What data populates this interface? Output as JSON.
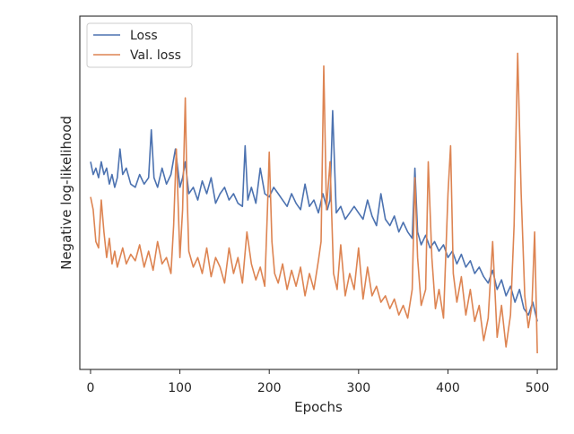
{
  "chart_data": {
    "type": "line",
    "xlabel": "Epochs",
    "ylabel": "Negative log-likelihood",
    "xlim": [
      -12,
      522
    ],
    "ylim": [
      0,
      1
    ],
    "y_tick_labels_shown": false,
    "x_ticks": [
      0,
      100,
      200,
      300,
      400,
      500
    ],
    "x_tick_labels": [
      "0",
      "100",
      "200",
      "300",
      "400",
      "500"
    ],
    "grid": false,
    "legend_position": "top-left",
    "colors": {
      "Loss": "#4c72b0",
      "Val. loss": "#dd8452"
    },
    "series": [
      {
        "name": "Loss",
        "x": [
          0,
          3,
          6,
          9,
          12,
          15,
          18,
          21,
          24,
          27,
          30,
          33,
          36,
          40,
          45,
          50,
          55,
          60,
          65,
          68,
          71,
          75,
          80,
          85,
          90,
          95,
          98,
          100,
          103,
          106,
          110,
          115,
          120,
          125,
          130,
          135,
          140,
          145,
          150,
          155,
          160,
          165,
          170,
          173,
          176,
          180,
          185,
          190,
          195,
          200,
          205,
          210,
          215,
          220,
          225,
          230,
          235,
          240,
          245,
          250,
          255,
          260,
          265,
          268,
          271,
          275,
          280,
          285,
          290,
          295,
          300,
          305,
          310,
          315,
          320,
          325,
          330,
          335,
          340,
          345,
          350,
          355,
          360,
          363,
          366,
          370,
          375,
          380,
          385,
          390,
          395,
          400,
          405,
          410,
          415,
          420,
          425,
          430,
          435,
          440,
          445,
          450,
          455,
          460,
          465,
          470,
          475,
          480,
          485,
          490,
          495,
          500
        ],
        "values": [
          0.6,
          0.56,
          0.58,
          0.55,
          0.6,
          0.56,
          0.58,
          0.53,
          0.56,
          0.52,
          0.55,
          0.64,
          0.56,
          0.58,
          0.53,
          0.52,
          0.56,
          0.53,
          0.55,
          0.7,
          0.55,
          0.52,
          0.58,
          0.53,
          0.56,
          0.64,
          0.57,
          0.52,
          0.55,
          0.6,
          0.5,
          0.52,
          0.48,
          0.54,
          0.5,
          0.55,
          0.47,
          0.5,
          0.52,
          0.48,
          0.5,
          0.47,
          0.46,
          0.65,
          0.48,
          0.52,
          0.47,
          0.58,
          0.5,
          0.49,
          0.52,
          0.5,
          0.48,
          0.46,
          0.5,
          0.47,
          0.45,
          0.53,
          0.46,
          0.48,
          0.44,
          0.5,
          0.45,
          0.48,
          0.76,
          0.44,
          0.46,
          0.42,
          0.44,
          0.46,
          0.44,
          0.42,
          0.48,
          0.43,
          0.4,
          0.5,
          0.42,
          0.4,
          0.43,
          0.38,
          0.41,
          0.38,
          0.36,
          0.58,
          0.38,
          0.34,
          0.37,
          0.33,
          0.35,
          0.32,
          0.34,
          0.3,
          0.32,
          0.28,
          0.31,
          0.27,
          0.29,
          0.25,
          0.27,
          0.24,
          0.22,
          0.26,
          0.2,
          0.23,
          0.18,
          0.21,
          0.16,
          0.2,
          0.14,
          0.12,
          0.16,
          0.1
        ]
      },
      {
        "name": "Val. loss",
        "x": [
          0,
          3,
          6,
          9,
          12,
          15,
          18,
          21,
          24,
          27,
          30,
          33,
          36,
          40,
          45,
          50,
          55,
          60,
          65,
          70,
          75,
          80,
          85,
          90,
          93,
          96,
          100,
          103,
          106,
          108,
          110,
          115,
          120,
          125,
          130,
          135,
          140,
          145,
          150,
          155,
          160,
          165,
          170,
          175,
          180,
          185,
          190,
          195,
          198,
          200,
          203,
          206,
          210,
          215,
          220,
          225,
          230,
          235,
          240,
          245,
          250,
          255,
          258,
          261,
          264,
          268,
          272,
          276,
          280,
          285,
          290,
          295,
          300,
          305,
          310,
          315,
          320,
          325,
          330,
          335,
          340,
          345,
          350,
          355,
          360,
          363,
          366,
          370,
          375,
          378,
          382,
          386,
          390,
          395,
          400,
          403,
          406,
          410,
          415,
          420,
          425,
          430,
          435,
          440,
          445,
          450,
          455,
          460,
          465,
          470,
          474,
          478,
          482,
          486,
          490,
          494,
          497,
          500
        ],
        "values": [
          0.49,
          0.45,
          0.35,
          0.33,
          0.48,
          0.38,
          0.3,
          0.36,
          0.28,
          0.32,
          0.27,
          0.3,
          0.33,
          0.28,
          0.31,
          0.29,
          0.34,
          0.27,
          0.32,
          0.26,
          0.35,
          0.28,
          0.3,
          0.25,
          0.4,
          0.64,
          0.3,
          0.45,
          0.8,
          0.5,
          0.32,
          0.27,
          0.3,
          0.25,
          0.33,
          0.24,
          0.3,
          0.27,
          0.22,
          0.33,
          0.25,
          0.3,
          0.22,
          0.38,
          0.28,
          0.23,
          0.27,
          0.21,
          0.45,
          0.63,
          0.35,
          0.25,
          0.22,
          0.28,
          0.2,
          0.26,
          0.21,
          0.27,
          0.18,
          0.25,
          0.2,
          0.29,
          0.35,
          0.9,
          0.45,
          0.6,
          0.25,
          0.2,
          0.34,
          0.18,
          0.25,
          0.2,
          0.33,
          0.17,
          0.27,
          0.18,
          0.21,
          0.16,
          0.18,
          0.14,
          0.17,
          0.12,
          0.15,
          0.11,
          0.2,
          0.55,
          0.3,
          0.15,
          0.2,
          0.6,
          0.3,
          0.14,
          0.2,
          0.11,
          0.5,
          0.65,
          0.25,
          0.16,
          0.24,
          0.12,
          0.2,
          0.1,
          0.15,
          0.04,
          0.11,
          0.35,
          0.05,
          0.15,
          0.02,
          0.12,
          0.4,
          0.94,
          0.5,
          0.18,
          0.08,
          0.15,
          0.38,
          0.0
        ]
      }
    ]
  }
}
